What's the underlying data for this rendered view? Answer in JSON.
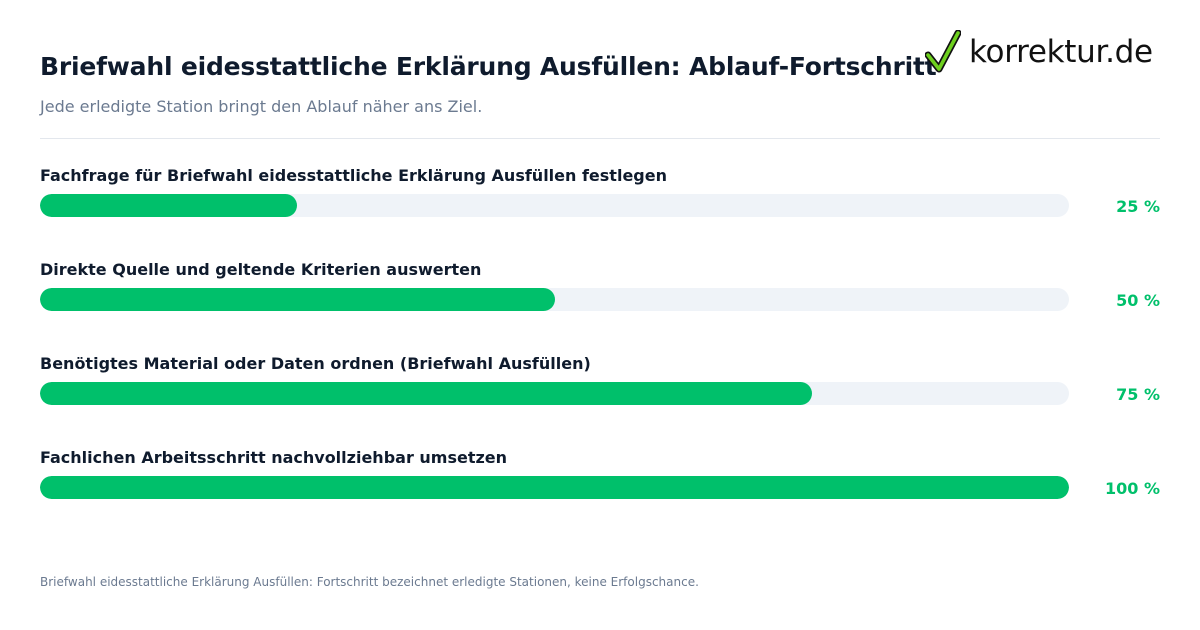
{
  "header": {
    "title": "Briefwahl eidesstattliche Erklärung Ausfüllen: Ablauf-Fortschritt",
    "subtitle": "Jede erledigte Station bringt den Ablauf näher ans Ziel."
  },
  "logo": {
    "text": "korrektur.de",
    "icon": "checkmark-icon",
    "check_color": "#6ed01e"
  },
  "colors": {
    "accent": "#00c06b",
    "track": "#eff3f8",
    "text": "#0f1b2d",
    "muted": "#6b7a90"
  },
  "chart_data": {
    "type": "bar",
    "orientation": "horizontal",
    "unit": "%",
    "xlim": [
      0,
      100
    ],
    "grid": false,
    "categories": [
      "Fachfrage für Briefwahl eidesstattliche Erklärung Ausfüllen festlegen",
      "Direkte Quelle und geltende Kriterien auswerten",
      "Benötigtes Material oder Daten ordnen (Briefwahl Ausfüllen)",
      "Fachlichen Arbeitsschritt nachvollziehbar umsetzen"
    ],
    "values": [
      25,
      50,
      75,
      100
    ],
    "value_labels": [
      "25 %",
      "50 %",
      "75 %",
      "100 %"
    ]
  },
  "footnote": "Briefwahl eidesstattliche Erklärung Ausfüllen: Fortschritt bezeichnet erledigte Stationen, keine Erfolgschance."
}
